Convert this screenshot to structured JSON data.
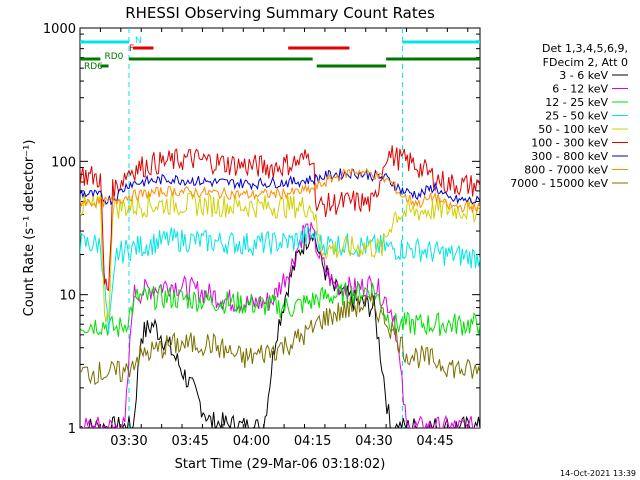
{
  "chart_data": {
    "type": "line",
    "title": "RHESSI Observing Summary Count Rates",
    "xlabel": "Start Time (29-Mar-06 03:18:02)",
    "ylabel": "Count Rate (s⁻¹ detector⁻¹)",
    "yscale": "log",
    "ylim": [
      1,
      1000
    ],
    "xlim": [
      "03:18",
      "04:56"
    ],
    "x_ticks": [
      "03:30",
      "03:45",
      "04:00",
      "04:15",
      "04:30",
      "04:45"
    ],
    "y_ticks": [
      "1",
      "10",
      "100",
      "1000"
    ],
    "legend_header": [
      "Det 1,3,4,5,6,9,",
      "FDecim 2, Att 0"
    ],
    "legend_position": "right",
    "timestamp": "14-Oct-2021 13:39",
    "annotations": {
      "N": "N",
      "F": "F",
      "RD0": "RD0",
      "RD6": "RD6"
    },
    "markers": [
      {
        "label": "N",
        "color": "#00e5e5",
        "segments": [
          [
            "03:18",
            "03:30"
          ],
          [
            "04:37",
            "04:56"
          ]
        ]
      },
      {
        "label": "F",
        "color": "#e00000",
        "segments": [
          [
            "03:31",
            "03:36"
          ],
          [
            "04:09",
            "04:24"
          ]
        ]
      },
      {
        "label": "RD0",
        "color": "#007800",
        "segments": [
          [
            "03:18",
            "03:23"
          ],
          [
            "03:30",
            "04:15"
          ],
          [
            "04:33",
            "04:56"
          ]
        ]
      },
      {
        "label": "RD6",
        "color": "#007800",
        "segments": [
          [
            "03:23",
            "03:25"
          ],
          [
            "04:16",
            "04:33"
          ]
        ]
      }
    ],
    "series": [
      {
        "name": "3 - 6 keV",
        "color": "#000000",
        "times": [
          "03:18",
          "03:30",
          "03:31",
          "03:33",
          "03:36",
          "03:40",
          "03:50",
          "04:00",
          "04:03",
          "04:06",
          "04:09",
          "04:12",
          "04:15",
          "04:17",
          "04:20",
          "04:25",
          "04:30",
          "04:32",
          "04:34",
          "04:36",
          "04:38",
          "04:42",
          "04:48",
          "04:56"
        ],
        "values": [
          1,
          1,
          1,
          5,
          6,
          4,
          1.1,
          1,
          1,
          5,
          12,
          22,
          31,
          18,
          11,
          9,
          8,
          3,
          1,
          1,
          1,
          1,
          1,
          1
        ]
      },
      {
        "name": "6 - 12 keV",
        "color": "#e000e0",
        "times": [
          "03:18",
          "03:29",
          "03:31",
          "03:35",
          "03:40",
          "03:45",
          "03:50",
          "03:55",
          "04:00",
          "04:05",
          "04:10",
          "04:13",
          "04:15",
          "04:17",
          "04:20",
          "04:25",
          "04:30",
          "04:33",
          "04:35",
          "04:38",
          "04:44",
          "04:48",
          "04:56"
        ],
        "values": [
          1,
          1,
          10,
          11,
          12,
          11,
          10,
          9,
          8.5,
          9,
          17,
          32,
          28,
          18,
          12,
          11,
          12,
          9,
          7,
          1,
          1,
          1,
          1
        ]
      },
      {
        "name": "12 - 25 keV",
        "color": "#00e000",
        "times": [
          "03:18",
          "03:24",
          "03:27",
          "03:29",
          "03:32",
          "03:40",
          "03:50",
          "04:00",
          "04:10",
          "04:15",
          "04:17",
          "04:22",
          "04:30",
          "04:33",
          "04:35",
          "04:40",
          "04:48",
          "04:56"
        ],
        "values": [
          6,
          6,
          5.5,
          6,
          9.5,
          9.5,
          9,
          8.5,
          8,
          9,
          9.5,
          10,
          11,
          7,
          6,
          6,
          6,
          6
        ]
      },
      {
        "name": "25 - 50 keV",
        "color": "#00e5e5",
        "times": [
          "03:18",
          "03:23",
          "03:24",
          "03:25",
          "03:27",
          "03:30",
          "03:35",
          "03:40",
          "03:50",
          "04:00",
          "04:10",
          "04:13",
          "04:15",
          "04:17",
          "04:22",
          "04:28",
          "04:32",
          "04:35",
          "04:40",
          "04:48",
          "04:56"
        ],
        "values": [
          24,
          24,
          12,
          5,
          20,
          22,
          24,
          26,
          25,
          24,
          25,
          27,
          28,
          24,
          24,
          23,
          23,
          22,
          22,
          20,
          19
        ]
      },
      {
        "name": "50 - 100 keV",
        "color": "#d0d000",
        "times": [
          "03:18",
          "03:23",
          "03:24",
          "03:25",
          "03:26",
          "03:30",
          "03:40",
          "03:50",
          "04:00",
          "04:10",
          "04:15",
          "04:17",
          "04:22",
          "04:28",
          "04:32",
          "04:35",
          "04:40",
          "04:48",
          "04:56"
        ],
        "values": [
          46,
          46,
          8,
          6,
          45,
          46,
          48,
          47,
          46,
          46,
          46,
          22,
          22,
          23,
          22,
          40,
          42,
          44,
          43
        ]
      },
      {
        "name": "100 - 300 keV",
        "color": "#e00000",
        "times": [
          "03:18",
          "03:23",
          "03:24",
          "03:25",
          "03:26",
          "03:30",
          "03:35",
          "03:45",
          "03:55",
          "04:05",
          "04:12",
          "04:15",
          "04:16",
          "04:20",
          "04:25",
          "04:30",
          "04:33",
          "04:36",
          "04:40",
          "04:45",
          "04:48",
          "04:56"
        ],
        "values": [
          80,
          75,
          12,
          11,
          60,
          85,
          95,
          105,
          95,
          90,
          100,
          115,
          45,
          48,
          50,
          48,
          115,
          105,
          95,
          75,
          68,
          65
        ]
      },
      {
        "name": "300 - 800 keV",
        "color": "#0000d0",
        "times": [
          "03:18",
          "03:23",
          "03:24",
          "03:26",
          "03:30",
          "03:40",
          "03:50",
          "04:00",
          "04:10",
          "04:15",
          "04:20",
          "04:25",
          "04:30",
          "04:33",
          "04:37",
          "04:41",
          "04:45",
          "04:48",
          "04:56"
        ],
        "values": [
          58,
          55,
          52,
          52,
          68,
          74,
          70,
          68,
          70,
          73,
          80,
          82,
          78,
          75,
          60,
          56,
          65,
          52,
          50
        ]
      },
      {
        "name": "800 - 7000 keV",
        "color": "#ff8c00",
        "times": [
          "03:18",
          "03:23",
          "03:26",
          "03:30",
          "03:40",
          "03:50",
          "04:00",
          "04:10",
          "04:15",
          "04:20",
          "04:25",
          "04:30",
          "04:34",
          "04:37",
          "04:41",
          "04:45",
          "04:48",
          "04:56"
        ],
        "values": [
          50,
          49,
          50,
          55,
          60,
          58,
          56,
          58,
          62,
          75,
          85,
          80,
          70,
          55,
          48,
          55,
          46,
          45
        ]
      },
      {
        "name": "7000 - 15000 keV",
        "color": "#7a7000",
        "times": [
          "03:18",
          "03:25",
          "03:29",
          "03:32",
          "03:40",
          "03:50",
          "03:58",
          "04:05",
          "04:10",
          "04:15",
          "04:17",
          "04:22",
          "04:28",
          "04:30",
          "04:33",
          "04:38",
          "04:45",
          "04:50",
          "04:56"
        ],
        "values": [
          2.6,
          2.6,
          2.6,
          3.4,
          4.2,
          4.3,
          3.3,
          3.8,
          4.4,
          5.5,
          6.5,
          7.5,
          8.5,
          8.3,
          6.5,
          3.6,
          3.2,
          2.8,
          2.6
        ]
      }
    ]
  }
}
